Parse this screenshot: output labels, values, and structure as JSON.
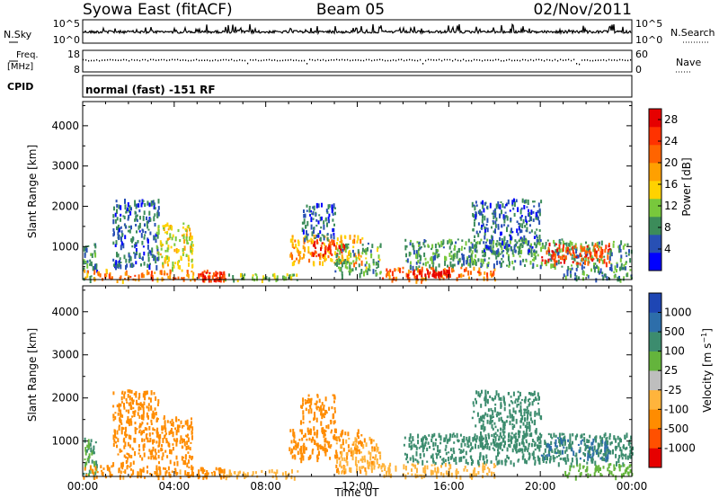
{
  "header": {
    "station": "Syowa East (fitACF)",
    "beam": "Beam 05",
    "date": "02/Nov/2011"
  },
  "strips": {
    "nsky": {
      "label": "N.Sky",
      "tick_labels": [
        "10^5",
        "10^0"
      ],
      "right_label": "N.Search",
      "right_tick_labels": [
        "10^5",
        "10^0"
      ]
    },
    "freq": {
      "label_line1": "Freq.",
      "label_line2": "[MHz]",
      "tick_labels": [
        "18",
        "8"
      ],
      "right_label": "Nave",
      "right_tick_labels": [
        "60",
        "0"
      ]
    },
    "cpid": {
      "label": "CPID",
      "text": "normal (fast) -151 RF"
    }
  },
  "colors": {
    "power_scale": [
      "#0000ff",
      "#2850b4",
      "#3c8c5a",
      "#78c83c",
      "#ffd200",
      "#ffa000",
      "#ff6400",
      "#ff3200",
      "#e60000"
    ],
    "velocity_scale": [
      "#1e46b4",
      "#2d6eaa",
      "#3c8c6e",
      "#64b43c",
      "#bebebe",
      "#ffb43c",
      "#ff8c00",
      "#ff5000",
      "#e60000"
    ]
  },
  "chart_data": [
    {
      "type": "heatmap",
      "quantity": "Power",
      "xlabel": "Time UT",
      "ylabel": "Slant Range [km]",
      "x_tick_labels": [
        "00:00",
        "04:00",
        "08:00",
        "12:00",
        "16:00",
        "20:00",
        "00:00"
      ],
      "xlim_hours": [
        0,
        24
      ],
      "ylim_km": [
        180,
        4600
      ],
      "y_ticks": [
        1000,
        2000,
        3000,
        4000
      ],
      "colorbar": {
        "label": "Power [dB]",
        "ticks": [
          4,
          8,
          12,
          16,
          20,
          24,
          28
        ],
        "range": [
          0,
          30
        ]
      },
      "echo_regions": [
        {
          "t0": 0.0,
          "t1": 0.6,
          "r0": 180,
          "r1": 1100,
          "v": 7
        },
        {
          "t0": 0.0,
          "t1": 5.5,
          "r0": 180,
          "r1": 450,
          "v": 20
        },
        {
          "t0": 1.3,
          "t1": 3.3,
          "r0": 500,
          "r1": 2200,
          "v": 6
        },
        {
          "t0": 3.2,
          "t1": 4.8,
          "r0": 500,
          "r1": 1600,
          "v": 14
        },
        {
          "t0": 5.0,
          "t1": 6.2,
          "r0": 180,
          "r1": 400,
          "v": 26
        },
        {
          "t0": 6.2,
          "t1": 9.5,
          "r0": 180,
          "r1": 350,
          "v": 12
        },
        {
          "t0": 9.0,
          "t1": 12.2,
          "r0": 600,
          "r1": 1300,
          "v": 18
        },
        {
          "t0": 10.0,
          "t1": 11.5,
          "r0": 800,
          "r1": 1200,
          "v": 26
        },
        {
          "t0": 9.5,
          "t1": 11.0,
          "r0": 1200,
          "r1": 2100,
          "v": 6
        },
        {
          "t0": 11.0,
          "t1": 13.0,
          "r0": 300,
          "r1": 1100,
          "v": 10
        },
        {
          "t0": 13.0,
          "t1": 18.0,
          "r0": 200,
          "r1": 500,
          "v": 22
        },
        {
          "t0": 14.0,
          "t1": 16.0,
          "r0": 300,
          "r1": 450,
          "v": 28
        },
        {
          "t0": 14.0,
          "t1": 24.0,
          "r0": 500,
          "r1": 1200,
          "v": 9
        },
        {
          "t0": 17.0,
          "t1": 20.0,
          "r0": 900,
          "r1": 2200,
          "v": 6
        },
        {
          "t0": 20.0,
          "t1": 23.0,
          "r0": 600,
          "r1": 1100,
          "v": 24
        },
        {
          "t0": 21.0,
          "t1": 24.0,
          "r0": 200,
          "r1": 500,
          "v": 8
        }
      ]
    },
    {
      "type": "heatmap",
      "quantity": "Velocity",
      "xlabel": "Time UT",
      "ylabel": "Slant Range [km]",
      "x_tick_labels": [
        "00:00",
        "04:00",
        "08:00",
        "12:00",
        "16:00",
        "20:00",
        "00:00"
      ],
      "xlim_hours": [
        0,
        24
      ],
      "ylim_km": [
        180,
        4600
      ],
      "y_ticks": [
        1000,
        2000,
        3000,
        4000
      ],
      "colorbar": {
        "label": "Velocity [m s^-1]",
        "ticks": [
          "1000",
          "500",
          "100",
          "25",
          "-25",
          "-100",
          "-500",
          "-1000"
        ]
      },
      "echo_regions": [
        {
          "t0": 0.0,
          "t1": 0.6,
          "r0": 180,
          "r1": 1100,
          "v": 100
        },
        {
          "t0": 0.0,
          "t1": 5.5,
          "r0": 180,
          "r1": 450,
          "v": -150
        },
        {
          "t0": 1.3,
          "t1": 3.3,
          "r0": 500,
          "r1": 2200,
          "v": -300
        },
        {
          "t0": 3.2,
          "t1": 4.8,
          "r0": 500,
          "r1": 1600,
          "v": -250
        },
        {
          "t0": 5.0,
          "t1": 6.2,
          "r0": 180,
          "r1": 400,
          "v": -150
        },
        {
          "t0": 6.2,
          "t1": 9.5,
          "r0": 180,
          "r1": 350,
          "v": -60
        },
        {
          "t0": 9.0,
          "t1": 12.2,
          "r0": 600,
          "r1": 1300,
          "v": -300
        },
        {
          "t0": 9.5,
          "t1": 11.0,
          "r0": 1200,
          "r1": 2100,
          "v": -200
        },
        {
          "t0": 11.0,
          "t1": 13.0,
          "r0": 300,
          "r1": 1100,
          "v": -80
        },
        {
          "t0": 13.0,
          "t1": 18.0,
          "r0": 200,
          "r1": 500,
          "v": -60
        },
        {
          "t0": 14.0,
          "t1": 24.0,
          "r0": 500,
          "r1": 1200,
          "v": 300
        },
        {
          "t0": 17.0,
          "t1": 20.0,
          "r0": 900,
          "r1": 2200,
          "v": 200
        },
        {
          "t0": 20.0,
          "t1": 23.0,
          "r0": 600,
          "r1": 1100,
          "v": 600
        },
        {
          "t0": 21.0,
          "t1": 24.0,
          "r0": 200,
          "r1": 500,
          "v": 50
        }
      ]
    }
  ]
}
